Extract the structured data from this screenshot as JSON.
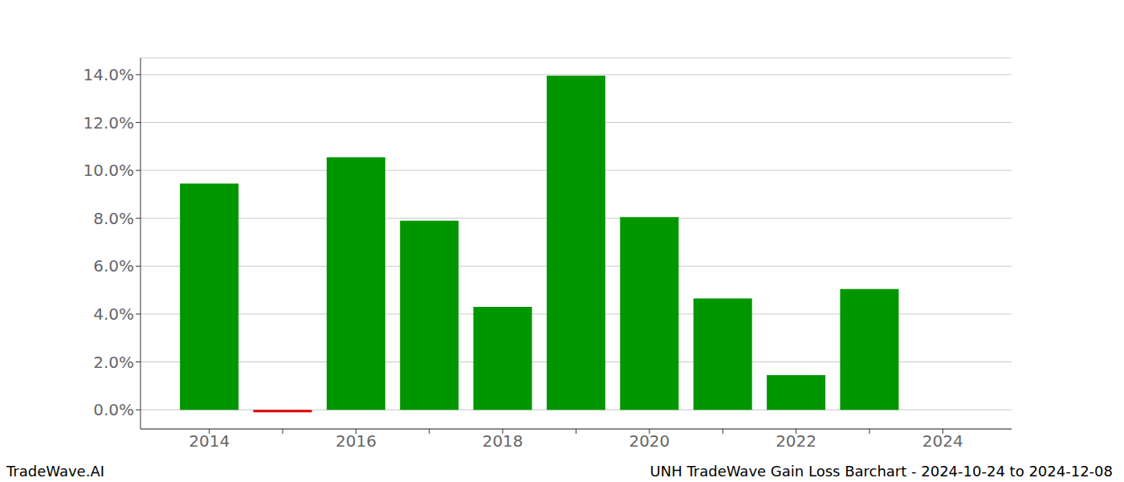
{
  "chart_data": {
    "type": "bar",
    "title": "UNH TradeWave Gain Loss Barchart - 2024-10-24 to 2024-12-08",
    "annotations": [
      "TradeWave.AI"
    ],
    "categories": [
      "2014",
      null,
      "2016",
      null,
      "2018",
      null,
      "2020",
      null,
      "2022",
      null,
      "2024"
    ],
    "values": [
      9.45,
      -0.1,
      10.55,
      7.9,
      4.3,
      13.95,
      8.05,
      4.65,
      1.45,
      5.05,
      null
    ],
    "colors": [
      "#009600",
      "#e00000",
      "#009600",
      "#009600",
      "#009600",
      "#009600",
      "#009600",
      "#009600",
      "#009600",
      "#009600",
      "#009600"
    ],
    "ylim": [
      -0.8,
      14.7
    ],
    "yticks": [
      {
        "value": 0,
        "label": "0.0%"
      },
      {
        "value": 2,
        "label": "2.0%"
      },
      {
        "value": 4,
        "label": "4.0%"
      },
      {
        "value": 6,
        "label": "6.0%"
      },
      {
        "value": 8,
        "label": "8.0%"
      },
      {
        "value": 10,
        "label": "10.0%"
      },
      {
        "value": 12,
        "label": "12.0%"
      },
      {
        "value": 14,
        "label": "14.0%"
      }
    ],
    "grid": true
  }
}
